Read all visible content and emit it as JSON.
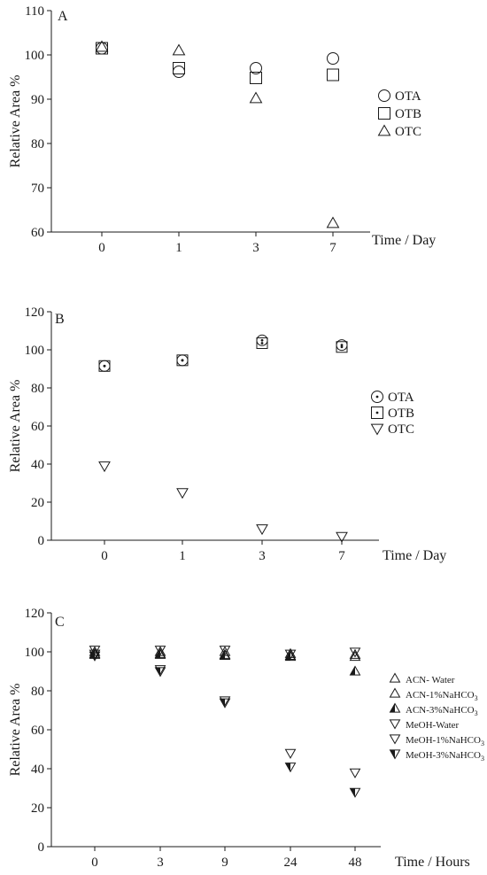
{
  "chart_data": [
    {
      "type": "scatter",
      "panel_label": "A",
      "ylabel": "Relative Area %",
      "xlabel": "Time / Day",
      "categories": [
        "0",
        "1",
        "3",
        "7"
      ],
      "ylim": [
        60,
        110
      ],
      "yticks": [
        "60",
        "70",
        "80",
        "90",
        "100",
        "110"
      ],
      "legend_position": "right",
      "series": [
        {
          "name": "OTA",
          "marker": "circle",
          "values": [
            101.5,
            96.2,
            97.0,
            99.2
          ]
        },
        {
          "name": "OTB",
          "marker": "square",
          "values": [
            101.5,
            97.0,
            94.8,
            95.5
          ]
        },
        {
          "name": "OTC",
          "marker": "triangle-up",
          "values": [
            101.8,
            101.0,
            90.2,
            62.0
          ]
        }
      ]
    },
    {
      "type": "scatter",
      "panel_label": "B",
      "ylabel": "Relative Area %",
      "xlabel": "Time / Day",
      "categories": [
        "0",
        "1",
        "3",
        "7"
      ],
      "ylim": [
        0,
        120
      ],
      "yticks": [
        "0",
        "20",
        "40",
        "60",
        "80",
        "100",
        "120"
      ],
      "legend_position": "right",
      "series": [
        {
          "name": "OTA",
          "marker": "circle-dot",
          "values": [
            91.5,
            94.5,
            105.0,
            102.5
          ]
        },
        {
          "name": "OTB",
          "marker": "square-dot",
          "values": [
            91.5,
            94.5,
            103.5,
            101.5
          ]
        },
        {
          "name": "OTC",
          "marker": "triangle-down",
          "values": [
            39.0,
            25.0,
            6.0,
            2.0
          ]
        }
      ]
    },
    {
      "type": "scatter",
      "panel_label": "C",
      "ylabel": "Relative Area %",
      "xlabel": "Time / Hours",
      "categories": [
        "0",
        "3",
        "9",
        "24",
        "48"
      ],
      "ylim": [
        0,
        120
      ],
      "yticks": [
        "0",
        "20",
        "40",
        "60",
        "80",
        "100",
        "120"
      ],
      "legend_position": "right",
      "series": [
        {
          "name": "ACN- Water",
          "name_main": "ACN- Water",
          "name_sub": "",
          "name_tail": "",
          "marker": "triangle-up",
          "values": [
            100.0,
            100.0,
            100.0,
            99.0,
            98.5
          ]
        },
        {
          "name": "ACN-1%NaHCO3",
          "name_main": "ACN-1%NaHCO",
          "name_sub": "3",
          "name_tail": "",
          "marker": "triangle-up-filled",
          "values": [
            99.0,
            99.0,
            98.5,
            98.0,
            97.5
          ]
        },
        {
          "name": "ACN-3%NaHCO3",
          "name_main": "ACN-3%NaHCO",
          "name_sub": "3",
          "name_tail": "",
          "marker": "triangle-up-half",
          "values": [
            98.5,
            98.5,
            98.0,
            97.5,
            90.0
          ]
        },
        {
          "name": "MeOH-Water",
          "name_main": "MeOH-Water",
          "name_sub": "",
          "name_tail": "",
          "marker": "triangle-down",
          "values": [
            101.0,
            101.0,
            101.0,
            99.0,
            100.0
          ]
        },
        {
          "name": "MeOH-1%NaHCO3",
          "name_main": "MeOH-1%NaHCO",
          "name_sub": "3",
          "name_tail": "",
          "marker": "triangle-down-filled",
          "values": [
            99.0,
            91.0,
            75.0,
            48.0,
            38.0
          ]
        },
        {
          "name": "MeOH-3%NaHCO3",
          "name_main": "MeOH-3%NaHCO",
          "name_sub": "3",
          "name_tail": "",
          "marker": "triangle-down-half",
          "values": [
            98.0,
            90.0,
            74.0,
            41.0,
            28.0
          ]
        }
      ]
    }
  ]
}
